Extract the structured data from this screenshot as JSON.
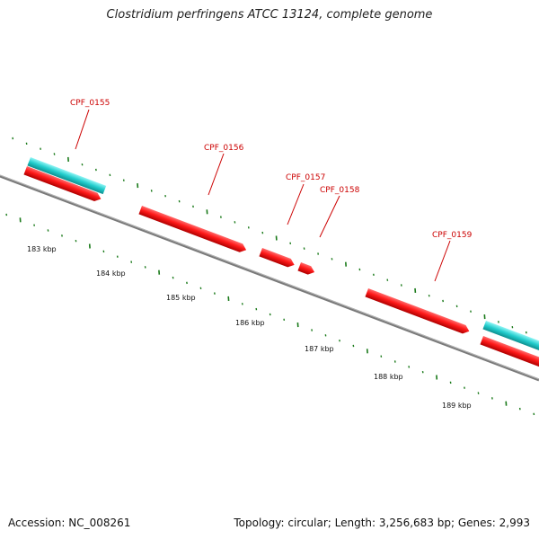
{
  "title": "Clostridium perfringens ATCC 13124, complete genome",
  "footer": {
    "accession": "Accession: NC_008261",
    "topology": "Topology: circular; Length: 3,256,683 bp; Genes: 2,993"
  },
  "kbp_labels": [
    "183 kbp",
    "184 kbp",
    "185 kbp",
    "186 kbp",
    "187 kbp",
    "188 kbp",
    "189 kbp"
  ],
  "gene_labels": [
    "CPF_0155",
    "CPF_0156",
    "CPF_0157",
    "CPF_0158",
    "CPF_0159"
  ],
  "colors": {
    "backbone": "#7a7a7a",
    "forward_gene": "#ff1a1a",
    "rna_feature": "#22cccc",
    "tick": "#1a7a1a",
    "label": "#cc0000"
  }
}
